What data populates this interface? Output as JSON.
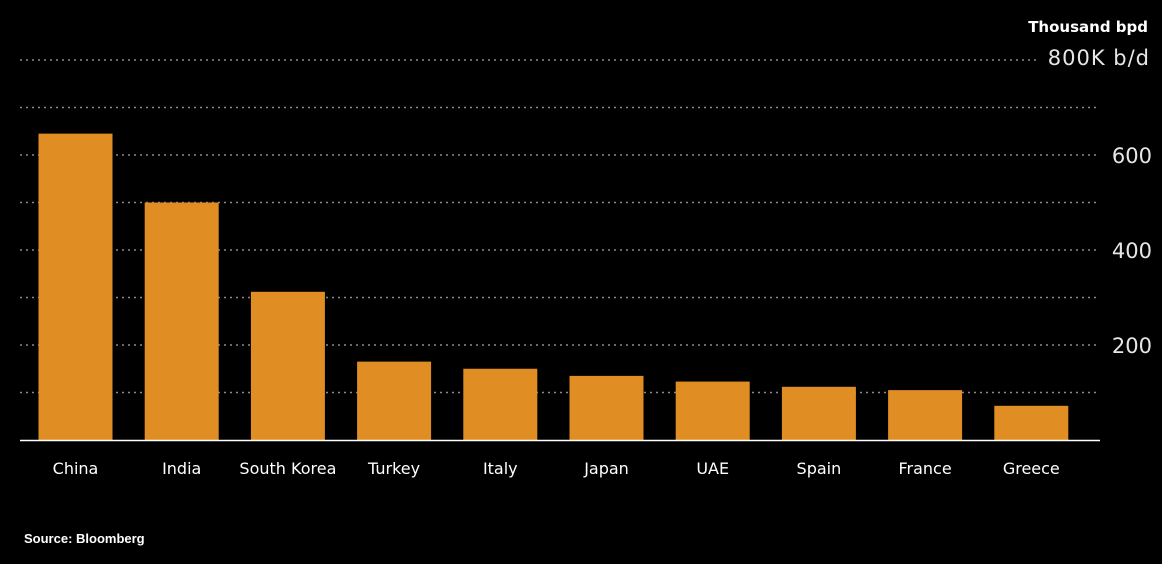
{
  "chart_data": {
    "type": "bar",
    "unit_label": "Thousand bpd",
    "top_tick_label": "800K b/d",
    "categories": [
      "China",
      "India",
      "South Korea",
      "Turkey",
      "Italy",
      "Japan",
      "UAE",
      "Spain",
      "France",
      "Greece"
    ],
    "values": [
      645,
      500,
      312,
      165,
      150,
      135,
      123,
      112,
      105,
      72
    ],
    "ylim": [
      0,
      800
    ],
    "yticks": [
      200,
      400,
      600
    ],
    "grid": true,
    "bar_color": "#e08e24",
    "source": "Source: Bloomberg"
  }
}
